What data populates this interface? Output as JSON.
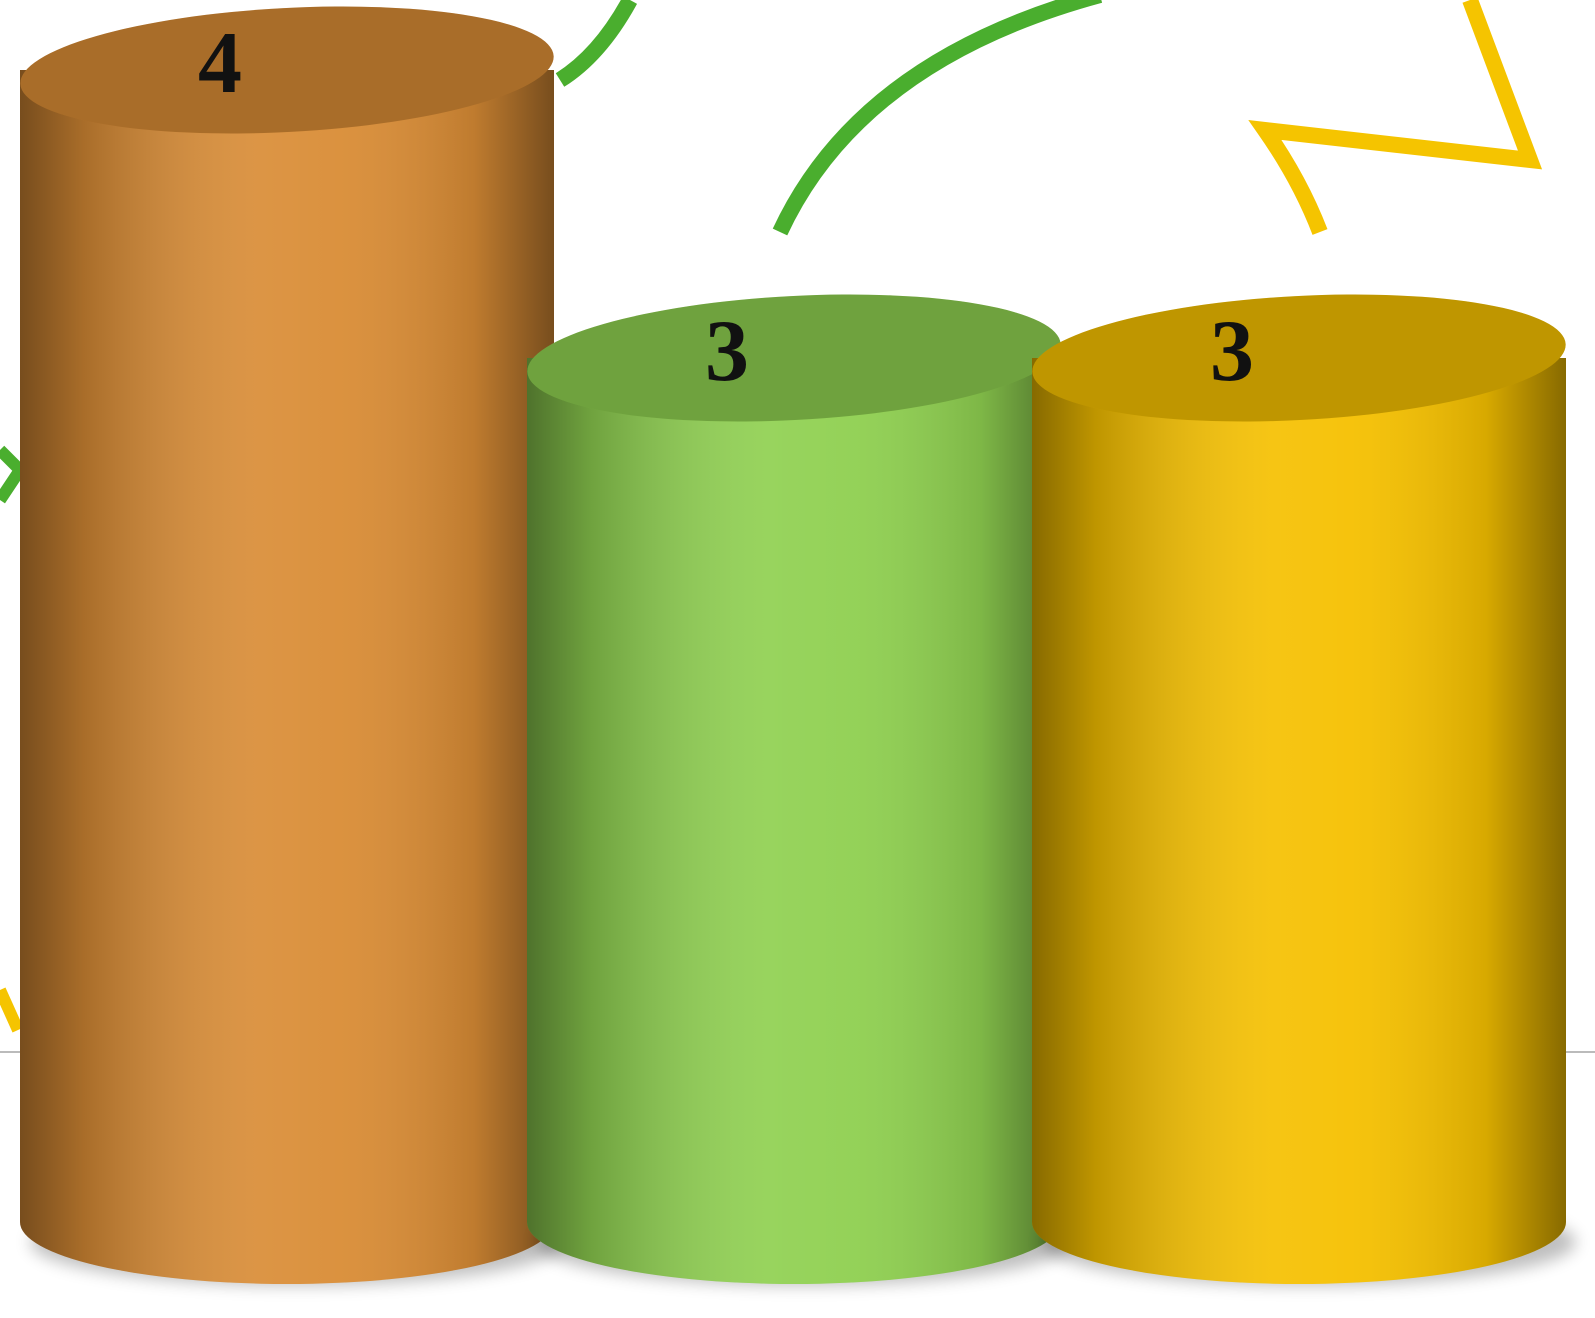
{
  "chart_data": {
    "type": "cylinder-bar",
    "values": [
      4,
      3,
      3
    ],
    "colors": [
      "#d98c35",
      "#8fd050",
      "#f5c000"
    ]
  }
}
